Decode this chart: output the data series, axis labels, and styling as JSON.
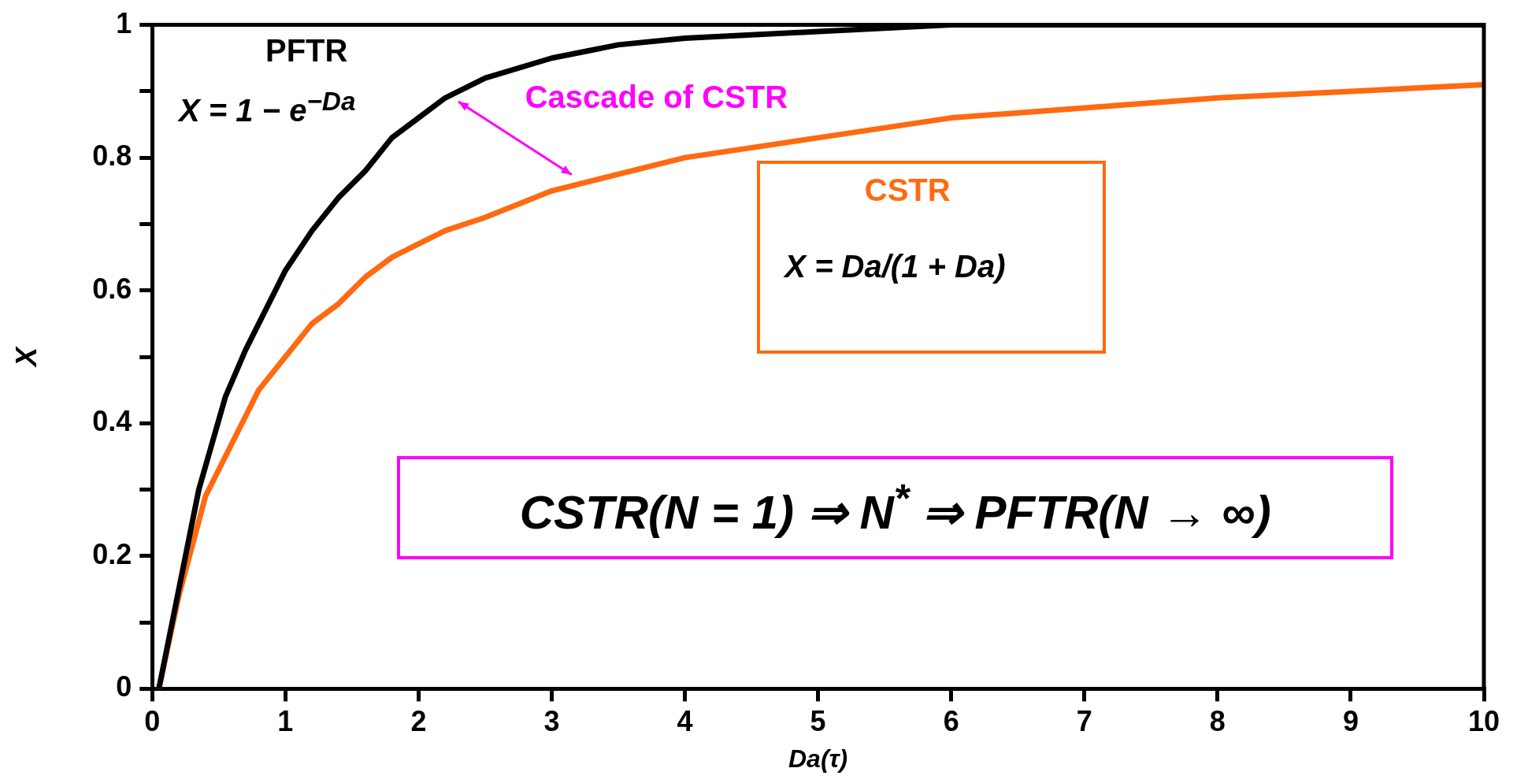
{
  "chart_data": {
    "type": "line",
    "xlabel": "Da(τ)",
    "ylabel": "X",
    "xlim": [
      0,
      10
    ],
    "xticks": [
      0,
      1,
      2,
      3,
      4,
      5,
      6,
      7,
      8,
      9,
      10
    ],
    "ylim": [
      0,
      1
    ],
    "yticks": [
      0,
      {
        "value": 0.1,
        "label": null
      },
      0.2,
      {
        "value": 0.3,
        "label": null
      },
      0.4,
      {
        "value": 0.5,
        "label": null
      },
      0.6,
      {
        "value": 0.7,
        "label": null
      },
      0.8,
      {
        "value": 0.9,
        "label": null
      },
      1
    ],
    "grid": false,
    "legend": false,
    "marker": "none",
    "line_style": "solid",
    "series": [
      {
        "name": "PFTR",
        "color": "#000000",
        "x": [
          0.05,
          0.2,
          0.35,
          0.55,
          0.7,
          1,
          1.2,
          1.4,
          1.6,
          1.8,
          2,
          2.2,
          2.5,
          3,
          3.5,
          4,
          5,
          6,
          8,
          10
        ],
        "values": [
          0,
          0.15,
          0.3,
          0.44,
          0.51,
          0.63,
          0.69,
          0.74,
          0.78,
          0.83,
          0.86,
          0.89,
          0.92,
          0.95,
          0.97,
          0.98,
          0.99,
          1.0,
          1.0,
          1.0
        ]
      },
      {
        "name": "CSTR",
        "color": "#ff6a10",
        "x": [
          0.05,
          0.2,
          0.4,
          0.55,
          0.8,
          1,
          1.2,
          1.4,
          1.6,
          1.8,
          2,
          2.2,
          2.5,
          3,
          3.2,
          4,
          5,
          6,
          7,
          8,
          9,
          10
        ],
        "values": [
          0,
          0.14,
          0.29,
          0.35,
          0.45,
          0.5,
          0.55,
          0.58,
          0.62,
          0.65,
          0.67,
          0.69,
          0.71,
          0.75,
          0.76,
          0.8,
          0.83,
          0.86,
          0.875,
          0.89,
          0.9,
          0.91
        ]
      }
    ],
    "annotations": [
      "X = 1 − e$^{−Da}$",
      "X = Da/(1 + Da)",
      "Cascade of CSTR",
      "CSTR(N = 1) ⇒ N$^{*}$ ⇒ PFTR(N → ∞)"
    ]
  }
}
